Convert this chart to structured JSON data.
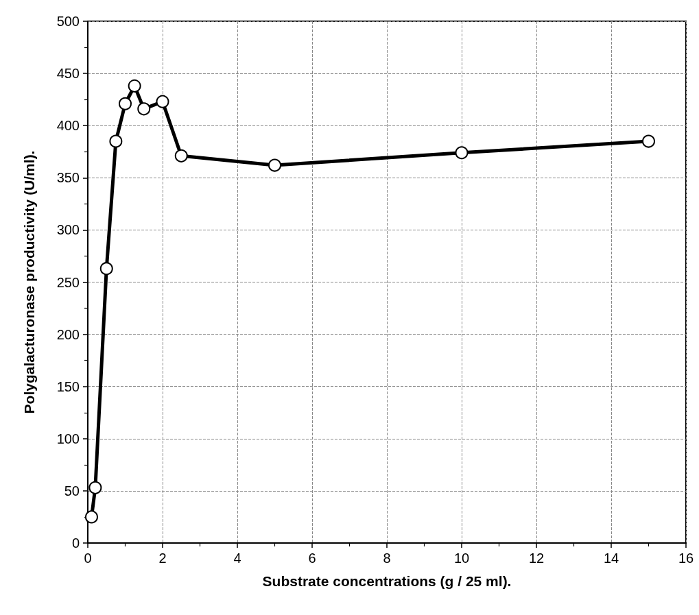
{
  "chart_data": {
    "type": "line",
    "xlabel": "Substrate concentrations (g / 25 ml).",
    "ylabel": "Polygalacturonase productivity (U/ml).",
    "x": [
      0.1,
      0.2,
      0.5,
      0.75,
      1,
      1.25,
      1.5,
      2,
      2.5,
      5,
      10,
      15
    ],
    "series": [
      {
        "color": "#000000",
        "values": [
          25,
          53,
          263,
          385,
          421,
          438,
          416,
          423,
          371,
          362,
          374,
          385
        ]
      }
    ],
    "xlim": [
      0,
      16
    ],
    "xticks": [
      0,
      2,
      4,
      6,
      8,
      10,
      12,
      14,
      16
    ],
    "ylim": [
      0,
      500
    ],
    "yticks": [
      0,
      50,
      100,
      150,
      200,
      250,
      300,
      350,
      400,
      450,
      500
    ],
    "grid": true,
    "marker": "circle",
    "line_style": "solid"
  }
}
